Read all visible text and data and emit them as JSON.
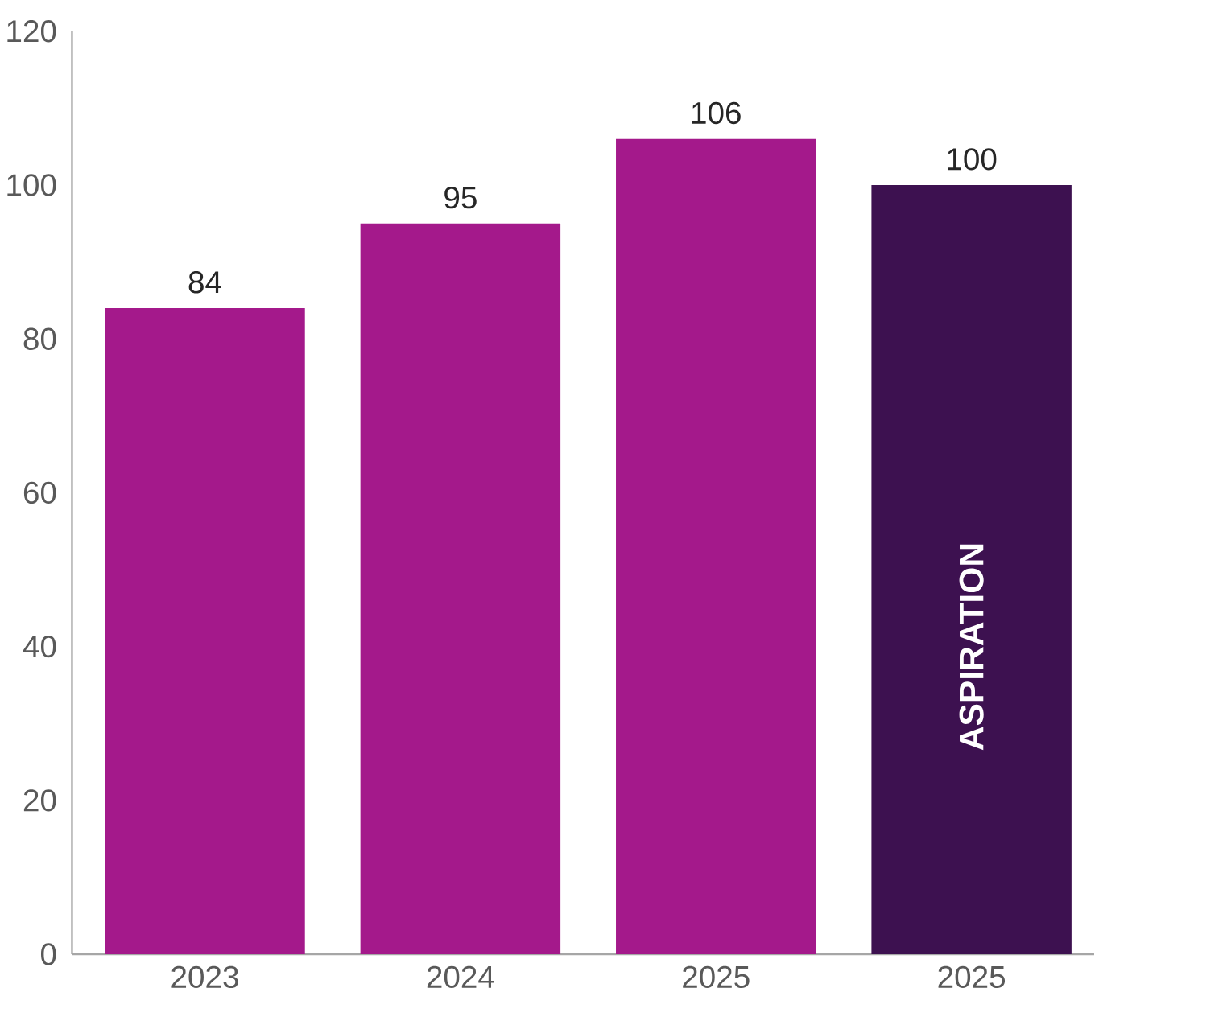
{
  "chart_data": {
    "type": "bar",
    "categories": [
      "2023",
      "2024",
      "2025",
      "2025"
    ],
    "values": [
      84,
      95,
      106,
      100
    ],
    "colors": [
      "#a4198b",
      "#a4198b",
      "#a4198b",
      "#3d1150"
    ],
    "value_labels": [
      "84",
      "95",
      "106",
      "100"
    ],
    "annotations": [
      "ASPIRATION"
    ],
    "ylim": [
      0,
      120
    ],
    "yticks": [
      0,
      20,
      40,
      60,
      80,
      100,
      120
    ],
    "grid": false
  }
}
